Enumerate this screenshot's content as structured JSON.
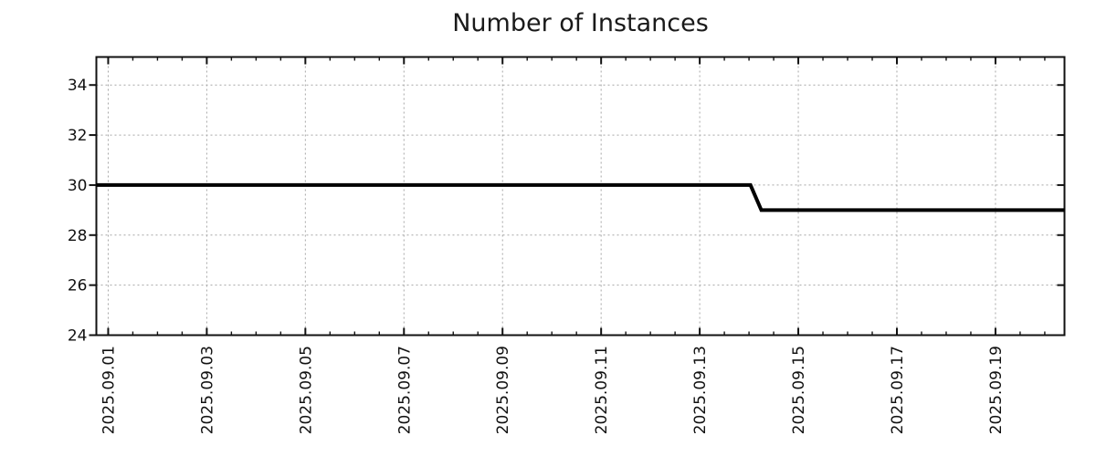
{
  "page": {
    "background_color": "#ffffff"
  },
  "chart_data": {
    "type": "line",
    "title": "Number of Instances",
    "legend": "none",
    "grid": {
      "visible": true,
      "style": "dashed",
      "color": "#a6a6a6"
    },
    "border_color": "#111111",
    "x_axis": {
      "kind": "date",
      "date_label_format": "YYYY.MM.DD",
      "epoch_day_zero_label": "2025.09.01",
      "range_days": [
        -0.24,
        19.4
      ],
      "tick_days": [
        0,
        2,
        4,
        6,
        8,
        10,
        12,
        14,
        16,
        18
      ],
      "tick_labels": [
        "2025.09.01",
        "2025.09.03",
        "2025.09.05",
        "2025.09.07",
        "2025.09.09",
        "2025.09.11",
        "2025.09.13",
        "2025.09.15",
        "2025.09.17",
        "2025.09.19"
      ],
      "minor_tick_step_days": 0.5,
      "label_rotation_deg": -90
    },
    "y_axis": {
      "range": [
        24,
        35.12
      ],
      "ticks": [
        24,
        26,
        28,
        30,
        32,
        34
      ],
      "tick_labels": [
        "24",
        "26",
        "28",
        "30",
        "32",
        "34"
      ]
    },
    "series": [
      {
        "name": "Number of Instances",
        "color": "#000000",
        "stroke_width": 4,
        "points_day_value": [
          [
            -0.24,
            30
          ],
          [
            13.03,
            30
          ],
          [
            13.25,
            29
          ],
          [
            19.4,
            29
          ]
        ]
      }
    ],
    "annotations": {
      "events": [
        {
          "date": "2025.09.14",
          "value_before": 30,
          "value_after": 29
        }
      ]
    }
  }
}
